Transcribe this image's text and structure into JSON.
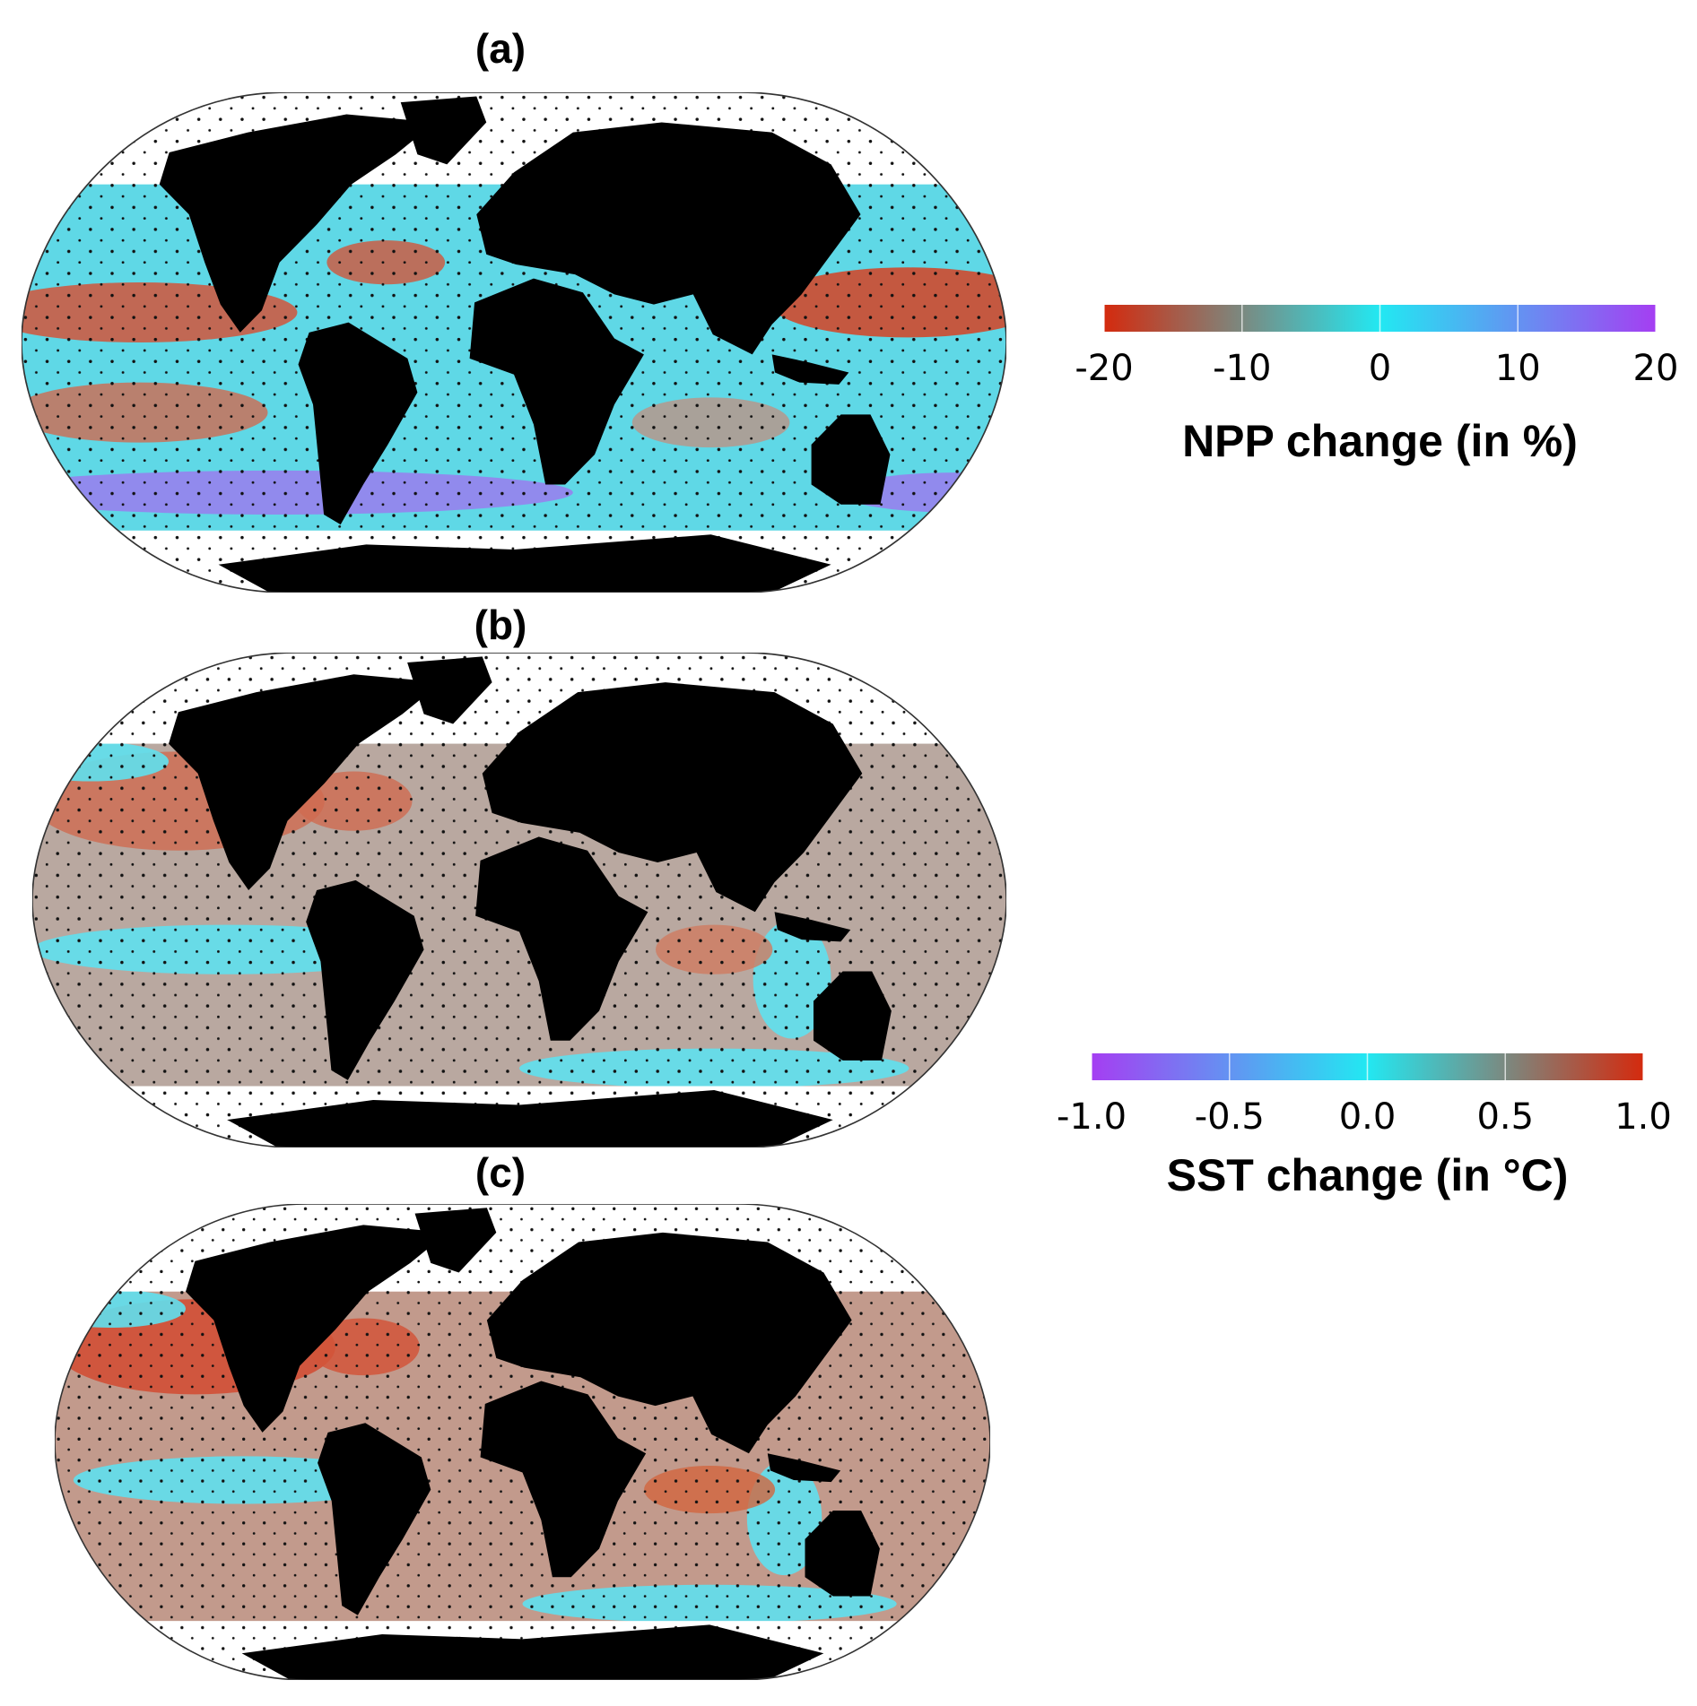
{
  "panels": [
    {
      "label": "(a)"
    },
    {
      "label": "(b)"
    },
    {
      "label": "(c)"
    }
  ],
  "colorbars": [
    {
      "label": "NPP change (in %)",
      "range": [
        -20,
        20
      ],
      "ticks": [
        -20,
        -10,
        0,
        10,
        20
      ],
      "colors": [
        "#d42a0e",
        "#22e8f2",
        "#a53ef2"
      ]
    },
    {
      "label": "SST change (in °C)",
      "range": [
        -1,
        1
      ],
      "ticks": [
        {
          "value": -1,
          "label": "-1.0"
        },
        -0.5,
        {
          "value": 0,
          "label": "0.0"
        },
        0.5,
        {
          "value": 1,
          "label": "1.0"
        }
      ],
      "colors": [
        "#a53ef2",
        "#22e8f2",
        "#d42a0e"
      ]
    }
  ]
}
